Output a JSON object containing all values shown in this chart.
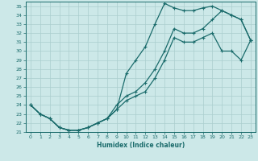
{
  "xlabel": "Humidex (Indice chaleur)",
  "bg_color": "#cce8e8",
  "grid_color": "#aacece",
  "line_color": "#1a6b6b",
  "xlim": [
    -0.5,
    23.5
  ],
  "ylim": [
    21.0,
    35.5
  ],
  "xticks": [
    0,
    1,
    2,
    3,
    4,
    5,
    6,
    7,
    8,
    9,
    10,
    11,
    12,
    13,
    14,
    15,
    16,
    17,
    18,
    19,
    20,
    21,
    22,
    23
  ],
  "yticks": [
    21,
    22,
    23,
    24,
    25,
    26,
    27,
    28,
    29,
    30,
    31,
    32,
    33,
    34,
    35
  ],
  "series1_x": [
    0,
    1,
    2,
    3,
    4,
    5,
    6,
    7,
    8,
    9,
    10,
    11,
    12,
    13,
    14,
    15,
    16,
    17,
    18,
    19,
    20,
    21,
    22,
    23
  ],
  "series1_y": [
    24.0,
    23.0,
    22.5,
    21.5,
    21.2,
    21.2,
    21.5,
    22.0,
    22.5,
    23.5,
    27.5,
    29.0,
    30.5,
    33.0,
    35.3,
    34.8,
    34.5,
    34.5,
    34.8,
    35.0,
    34.5,
    34.0,
    33.5,
    31.2
  ],
  "series2_x": [
    0,
    1,
    2,
    3,
    4,
    5,
    6,
    7,
    8,
    9,
    10,
    11,
    12,
    13,
    14,
    15,
    16,
    17,
    18,
    19,
    20,
    21,
    22,
    23
  ],
  "series2_y": [
    24.0,
    23.0,
    22.5,
    21.5,
    21.2,
    21.2,
    21.5,
    22.0,
    22.5,
    24.0,
    25.0,
    25.5,
    26.5,
    28.0,
    30.0,
    32.5,
    32.0,
    32.0,
    32.5,
    33.5,
    34.5,
    34.0,
    33.5,
    31.2
  ],
  "series3_x": [
    0,
    1,
    2,
    3,
    4,
    5,
    6,
    7,
    8,
    9,
    10,
    11,
    12,
    13,
    14,
    15,
    16,
    17,
    18,
    19,
    20,
    21,
    22,
    23
  ],
  "series3_y": [
    24.0,
    23.0,
    22.5,
    21.5,
    21.2,
    21.2,
    21.5,
    22.0,
    22.5,
    23.5,
    24.5,
    25.0,
    25.5,
    27.0,
    29.0,
    31.5,
    31.0,
    31.0,
    31.5,
    32.0,
    30.0,
    30.0,
    29.0,
    31.2
  ]
}
